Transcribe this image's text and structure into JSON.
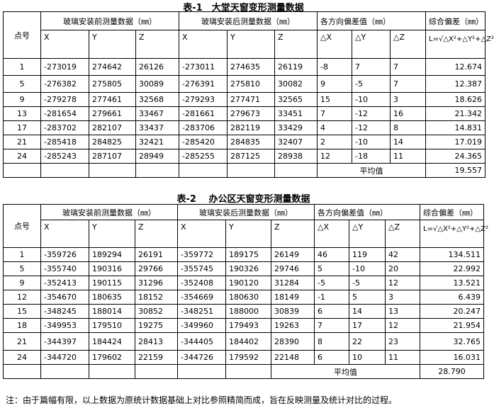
{
  "tables": [
    {
      "title": "表-1　大堂天窗变形测量数据",
      "headers": {
        "point": "点号",
        "before": "玻璃安装前测量数据（㎜）",
        "after": "玻璃安装后测量数据（㎜）",
        "deviation": "各方向偏差值（㎜）",
        "total": "综合偏差（㎜）",
        "sub": [
          "X",
          "Y",
          "Z",
          "X",
          "Y",
          "Z",
          "△X",
          "△Y",
          "△Z"
        ],
        "formula": "L=√△X²+△Y²+△Z²"
      },
      "rows": [
        [
          "1",
          "-273019",
          "274642",
          "26126",
          "-273011",
          "274635",
          "26119",
          "-8",
          "7",
          "7",
          "12.674"
        ],
        [
          "5",
          "-276382",
          "275805",
          "30089",
          "-276391",
          "275810",
          "30082",
          "9",
          "-5",
          "7",
          "12.387"
        ],
        [
          "9",
          "-279278",
          "277461",
          "32568",
          "-279293",
          "277471",
          "32565",
          "15",
          "-10",
          "3",
          "18.626"
        ],
        [
          "13",
          "-281654",
          "279661",
          "33467",
          "-281661",
          "279673",
          "33451",
          "7",
          "-12",
          "16",
          "21.342"
        ],
        [
          "17",
          "-283702",
          "282107",
          "33437",
          "-283706",
          "282119",
          "33429",
          "4",
          "-12",
          "8",
          "14.831"
        ],
        [
          "21",
          "-285418",
          "284825",
          "32421",
          "-285420",
          "284835",
          "32407",
          "2",
          "-10",
          "14",
          "17.019"
        ],
        [
          "24",
          "-285243",
          "287107",
          "28949",
          "-285255",
          "287125",
          "28938",
          "12",
          "-18",
          "11",
          "24.365"
        ]
      ],
      "average_label": "平均值",
      "average_value": "19.557"
    },
    {
      "title": "表-2　 办公区天窗变形测量数据",
      "headers": {
        "point": "点号",
        "before": "玻璃安装前测量数据（㎜）",
        "after": "玻璃安装后测量数据（㎜）",
        "deviation": "各方向偏差值（㎜）",
        "total": "综合偏差（㎜）",
        "sub": [
          "X",
          "Y",
          "Z",
          "X",
          "Y",
          "Z",
          "△X",
          "△Y",
          "△Z"
        ],
        "formula": "L=√△X²+△Y²+△Z²"
      },
      "rows": [
        [
          "1",
          "-359726",
          "189294",
          "26191",
          "-359772",
          "189175",
          "26149",
          "46",
          "119",
          "42",
          "134.511"
        ],
        [
          "5",
          "-355740",
          "190316",
          "29766",
          "-355745",
          "190326",
          "29746",
          "5",
          "-10",
          "20",
          "22.992"
        ],
        [
          "9",
          "-352413",
          "190115",
          "31296",
          "-352408",
          "190120",
          "31284",
          "-5",
          "-5",
          "12",
          "13.521"
        ],
        [
          "12",
          "-354670",
          "180635",
          "18152",
          "-354669",
          "180630",
          "18149",
          "-1",
          "5",
          "3",
          "6.439"
        ],
        [
          "15",
          "-348245",
          "188014",
          "30852",
          "-348251",
          "188000",
          "30839",
          "6",
          "14",
          "13",
          "20.247"
        ],
        [
          "18",
          "-349953",
          "179510",
          "19275",
          "-349960",
          "179493",
          "19263",
          "7",
          "17",
          "12",
          "21.954"
        ],
        [
          "21",
          "-344397",
          "184424",
          "28413",
          "-344405",
          "184402",
          "28390",
          "8",
          "22",
          "23",
          "32.765"
        ],
        [
          "24",
          "-344720",
          "179602",
          "22159",
          "-344726",
          "179592",
          "22148",
          "6",
          "10",
          "11",
          "16.031"
        ]
      ],
      "average_label": "平均值",
      "average_value": "28.790"
    }
  ],
  "note": "注：由于篇幅有限，以上数据为原统计数据基础上对比参照精简而成，旨在反映测量及统计对比的过程。"
}
